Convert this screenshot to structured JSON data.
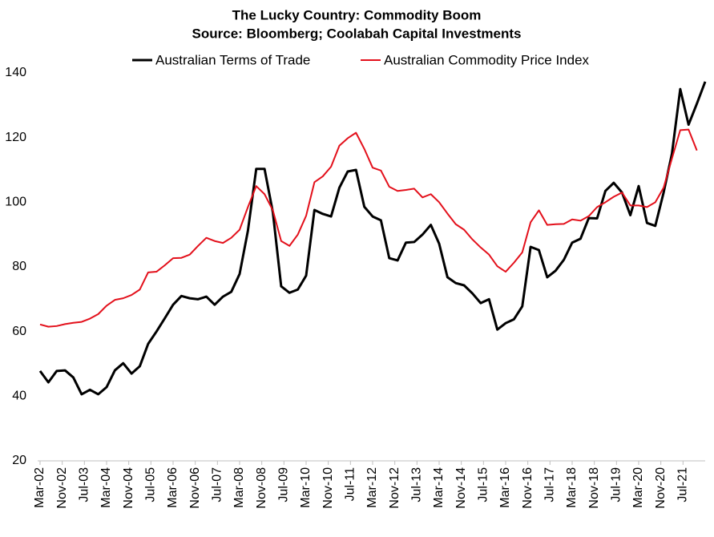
{
  "chart_data": {
    "type": "line",
    "title": "The Lucky Country: Commodity Boom",
    "subtitle": "Source: Bloomberg; Coolabah Capital Investments",
    "x": [
      "2002-03",
      "2002-06",
      "2002-09",
      "2002-12",
      "2003-03",
      "2003-06",
      "2003-09",
      "2003-12",
      "2004-03",
      "2004-06",
      "2004-09",
      "2004-12",
      "2005-03",
      "2005-06",
      "2005-09",
      "2005-12",
      "2006-03",
      "2006-06",
      "2006-09",
      "2006-12",
      "2007-03",
      "2007-06",
      "2007-09",
      "2007-12",
      "2008-03",
      "2008-06",
      "2008-09",
      "2008-12",
      "2009-03",
      "2009-06",
      "2009-09",
      "2009-12",
      "2010-03",
      "2010-06",
      "2010-09",
      "2010-12",
      "2011-03",
      "2011-06",
      "2011-09",
      "2011-12",
      "2012-03",
      "2012-06",
      "2012-09",
      "2012-12",
      "2013-03",
      "2013-06",
      "2013-09",
      "2013-12",
      "2014-03",
      "2014-06",
      "2014-09",
      "2014-12",
      "2015-03",
      "2015-06",
      "2015-09",
      "2015-12",
      "2016-03",
      "2016-06",
      "2016-09",
      "2016-12",
      "2017-03",
      "2017-06",
      "2017-09",
      "2017-12",
      "2018-03",
      "2018-06",
      "2018-09",
      "2018-12",
      "2019-03",
      "2019-06",
      "2019-09",
      "2019-12",
      "2020-03",
      "2020-06",
      "2020-09",
      "2020-12",
      "2021-03",
      "2021-06",
      "2021-09",
      "2021-12",
      "2022-03"
    ],
    "series": [
      {
        "name": "Australian Terms of Trade",
        "color": "#000000",
        "values": [
          47.8,
          44.3,
          47.8,
          48,
          45.8,
          40.6,
          42,
          40.6,
          42.8,
          48,
          50.2,
          47,
          49.3,
          56.2,
          60,
          64.1,
          68.3,
          71,
          70.3,
          70,
          70.8,
          68.3,
          70.8,
          72.3,
          77.8,
          91.2,
          110.3,
          110.3,
          96.9,
          74,
          72,
          73,
          77.3,
          97.6,
          96.4,
          95.6,
          104.5,
          109.5,
          110,
          98.6,
          95.6,
          94.4,
          82.7,
          82,
          87.5,
          87.7,
          90,
          93,
          87.2,
          76.8,
          75,
          74.3,
          71.8,
          68.8,
          70,
          60.6,
          62.6,
          63.8,
          67.8,
          86.2,
          85.2,
          76.8,
          78.8,
          82.2,
          87.5,
          88.7,
          95.1,
          95,
          103.5,
          106,
          103,
          96,
          105,
          93.6,
          92.7,
          103,
          115,
          135,
          124,
          130.5,
          137.3
        ]
      },
      {
        "name": "Australian Commodity Price Index",
        "color": "#e3101b",
        "values": [
          62.2,
          61.5,
          61.7,
          62.3,
          62.7,
          63,
          64,
          65.4,
          68,
          69.8,
          70.3,
          71.3,
          73,
          78.3,
          78.5,
          80.5,
          82.7,
          82.8,
          83.8,
          86.5,
          89,
          88,
          87.4,
          89,
          91.5,
          98.5,
          105,
          102.5,
          97.5,
          88,
          86.5,
          90,
          95.8,
          106.2,
          108,
          111,
          117.5,
          119.8,
          121.5,
          116.5,
          110.7,
          109.8,
          104.8,
          103.5,
          103.8,
          104.2,
          101.5,
          102.5,
          100,
          96.5,
          93.2,
          91.5,
          88.5,
          86,
          83.8,
          80.2,
          78.5,
          81.3,
          84.5,
          93.8,
          97.5,
          93,
          93.2,
          93.3,
          94.7,
          94.3,
          95.7,
          98.5,
          100,
          101.7,
          103,
          99,
          99,
          98.5,
          100,
          104.5,
          113.5,
          122.3,
          122.5,
          116,
          null
        ]
      }
    ],
    "xlim": [
      "2002-03",
      "2022-03"
    ],
    "xticks": [
      {
        "value": "2002-03",
        "label": "Mar-02"
      },
      {
        "value": "2002-11",
        "label": "Nov-02"
      },
      {
        "value": "2003-07",
        "label": "Jul-03"
      },
      {
        "value": "2004-03",
        "label": "Mar-04"
      },
      {
        "value": "2004-11",
        "label": "Nov-04"
      },
      {
        "value": "2005-07",
        "label": "Jul-05"
      },
      {
        "value": "2006-03",
        "label": "Mar-06"
      },
      {
        "value": "2006-11",
        "label": "Nov-06"
      },
      {
        "value": "2007-07",
        "label": "Jul-07"
      },
      {
        "value": "2008-03",
        "label": "Mar-08"
      },
      {
        "value": "2008-11",
        "label": "Nov-08"
      },
      {
        "value": "2009-07",
        "label": "Jul-09"
      },
      {
        "value": "2010-03",
        "label": "Mar-10"
      },
      {
        "value": "2010-11",
        "label": "Nov-10"
      },
      {
        "value": "2011-07",
        "label": "Jul-11"
      },
      {
        "value": "2012-03",
        "label": "Mar-12"
      },
      {
        "value": "2012-11",
        "label": "Nov-12"
      },
      {
        "value": "2013-07",
        "label": "Jul-13"
      },
      {
        "value": "2014-03",
        "label": "Mar-14"
      },
      {
        "value": "2014-11",
        "label": "Nov-14"
      },
      {
        "value": "2015-07",
        "label": "Jul-15"
      },
      {
        "value": "2016-03",
        "label": "Mar-16"
      },
      {
        "value": "2016-11",
        "label": "Nov-16"
      },
      {
        "value": "2017-07",
        "label": "Jul-17"
      },
      {
        "value": "2018-03",
        "label": "Mar-18"
      },
      {
        "value": "2018-11",
        "label": "Nov-18"
      },
      {
        "value": "2019-07",
        "label": "Jul-19"
      },
      {
        "value": "2020-03",
        "label": "Mar-20"
      },
      {
        "value": "2020-11",
        "label": "Nov-20"
      },
      {
        "value": "2021-07",
        "label": "Jul-21"
      }
    ],
    "ylim": [
      20,
      140
    ],
    "yticks": [
      20,
      40,
      60,
      80,
      100,
      120,
      140
    ],
    "grid": false,
    "legend": "top"
  }
}
